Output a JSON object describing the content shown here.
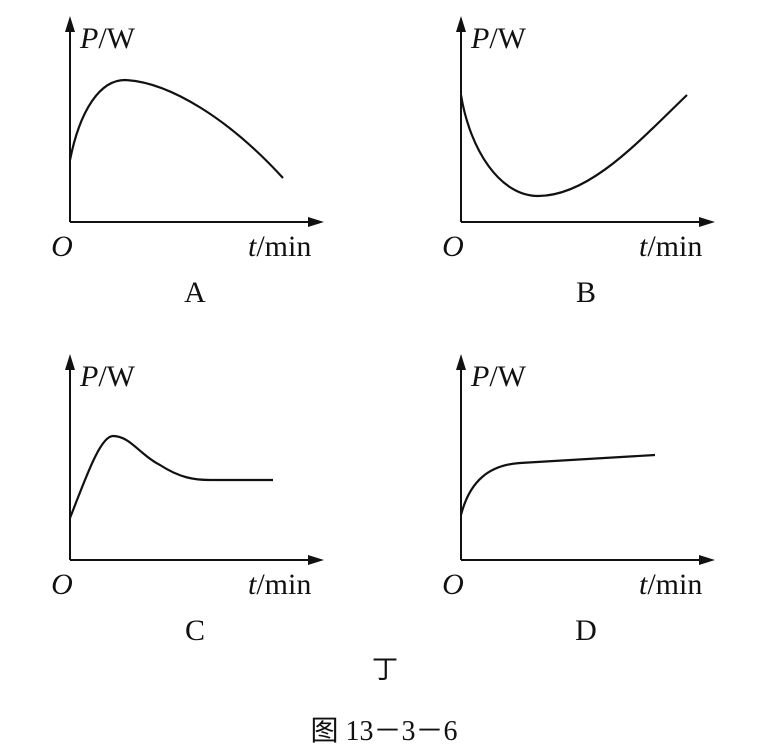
{
  "panels": [
    {
      "y_axis_symbol": "P",
      "y_axis_unit": "/W",
      "origin": "O",
      "x_axis_symbol": "t",
      "x_axis_unit": "/min",
      "label": "A"
    },
    {
      "y_axis_symbol": "P",
      "y_axis_unit": "/W",
      "origin": "O",
      "x_axis_symbol": "t",
      "x_axis_unit": "/min",
      "label": "B"
    },
    {
      "y_axis_symbol": "P",
      "y_axis_unit": "/W",
      "origin": "O",
      "x_axis_symbol": "t",
      "x_axis_unit": "/min",
      "label": "C"
    },
    {
      "y_axis_symbol": "P",
      "y_axis_unit": "/W",
      "origin": "O",
      "x_axis_symbol": "t",
      "x_axis_unit": "/min",
      "label": "D"
    }
  ],
  "group_label": "丁",
  "caption": "图 13－3－6"
}
